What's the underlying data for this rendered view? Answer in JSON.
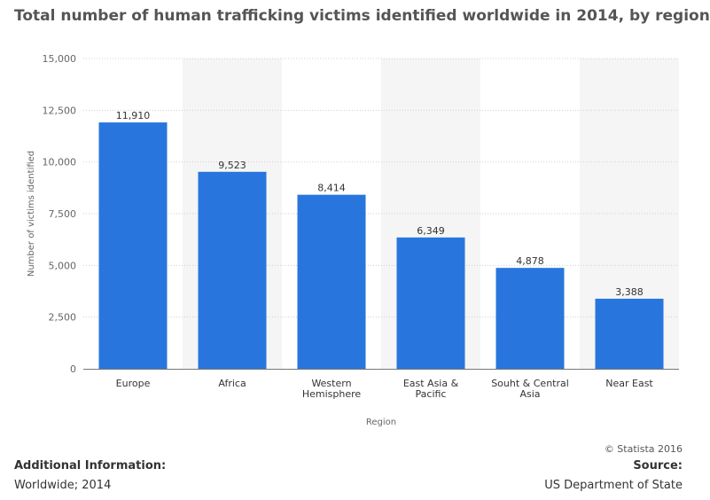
{
  "page": {
    "title": "Total number of human trafficking victims identified worldwide in 2014, by region"
  },
  "chart_data": {
    "type": "bar",
    "title": "Total number of human trafficking victims identified worldwide in 2014, by region",
    "xlabel": "Region",
    "ylabel": "Number of victims identified",
    "categories": [
      [
        "Europe"
      ],
      [
        "Africa"
      ],
      [
        "Western",
        "Hemisphere"
      ],
      [
        "East Asia &",
        "Pacific"
      ],
      [
        "Souht & Central",
        "Asia"
      ],
      [
        "Near East"
      ]
    ],
    "values": [
      11910,
      9523,
      8414,
      6349,
      4878,
      3388
    ],
    "value_labels": [
      "11,910",
      "9,523",
      "8,414",
      "6,349",
      "4,878",
      "3,388"
    ],
    "yticks": [
      0,
      2500,
      5000,
      7500,
      10000,
      12500,
      15000
    ],
    "ytick_labels": [
      "0",
      "2,500",
      "5,000",
      "7,500",
      "10,000",
      "12,500",
      "15,000"
    ],
    "ylim": [
      0,
      15000
    ],
    "grid": true,
    "alternating_column_bands": true,
    "bar_color": "#2876dd",
    "band_color": "#f5f5f5",
    "grid_color": "#cfcfcf"
  },
  "footer": {
    "additional_info_label": "Additional Information:",
    "additional_info_value": "Worldwide; 2014",
    "copyright": "© Statista 2016",
    "source_label": "Source:",
    "source_value": "US Department of State"
  }
}
